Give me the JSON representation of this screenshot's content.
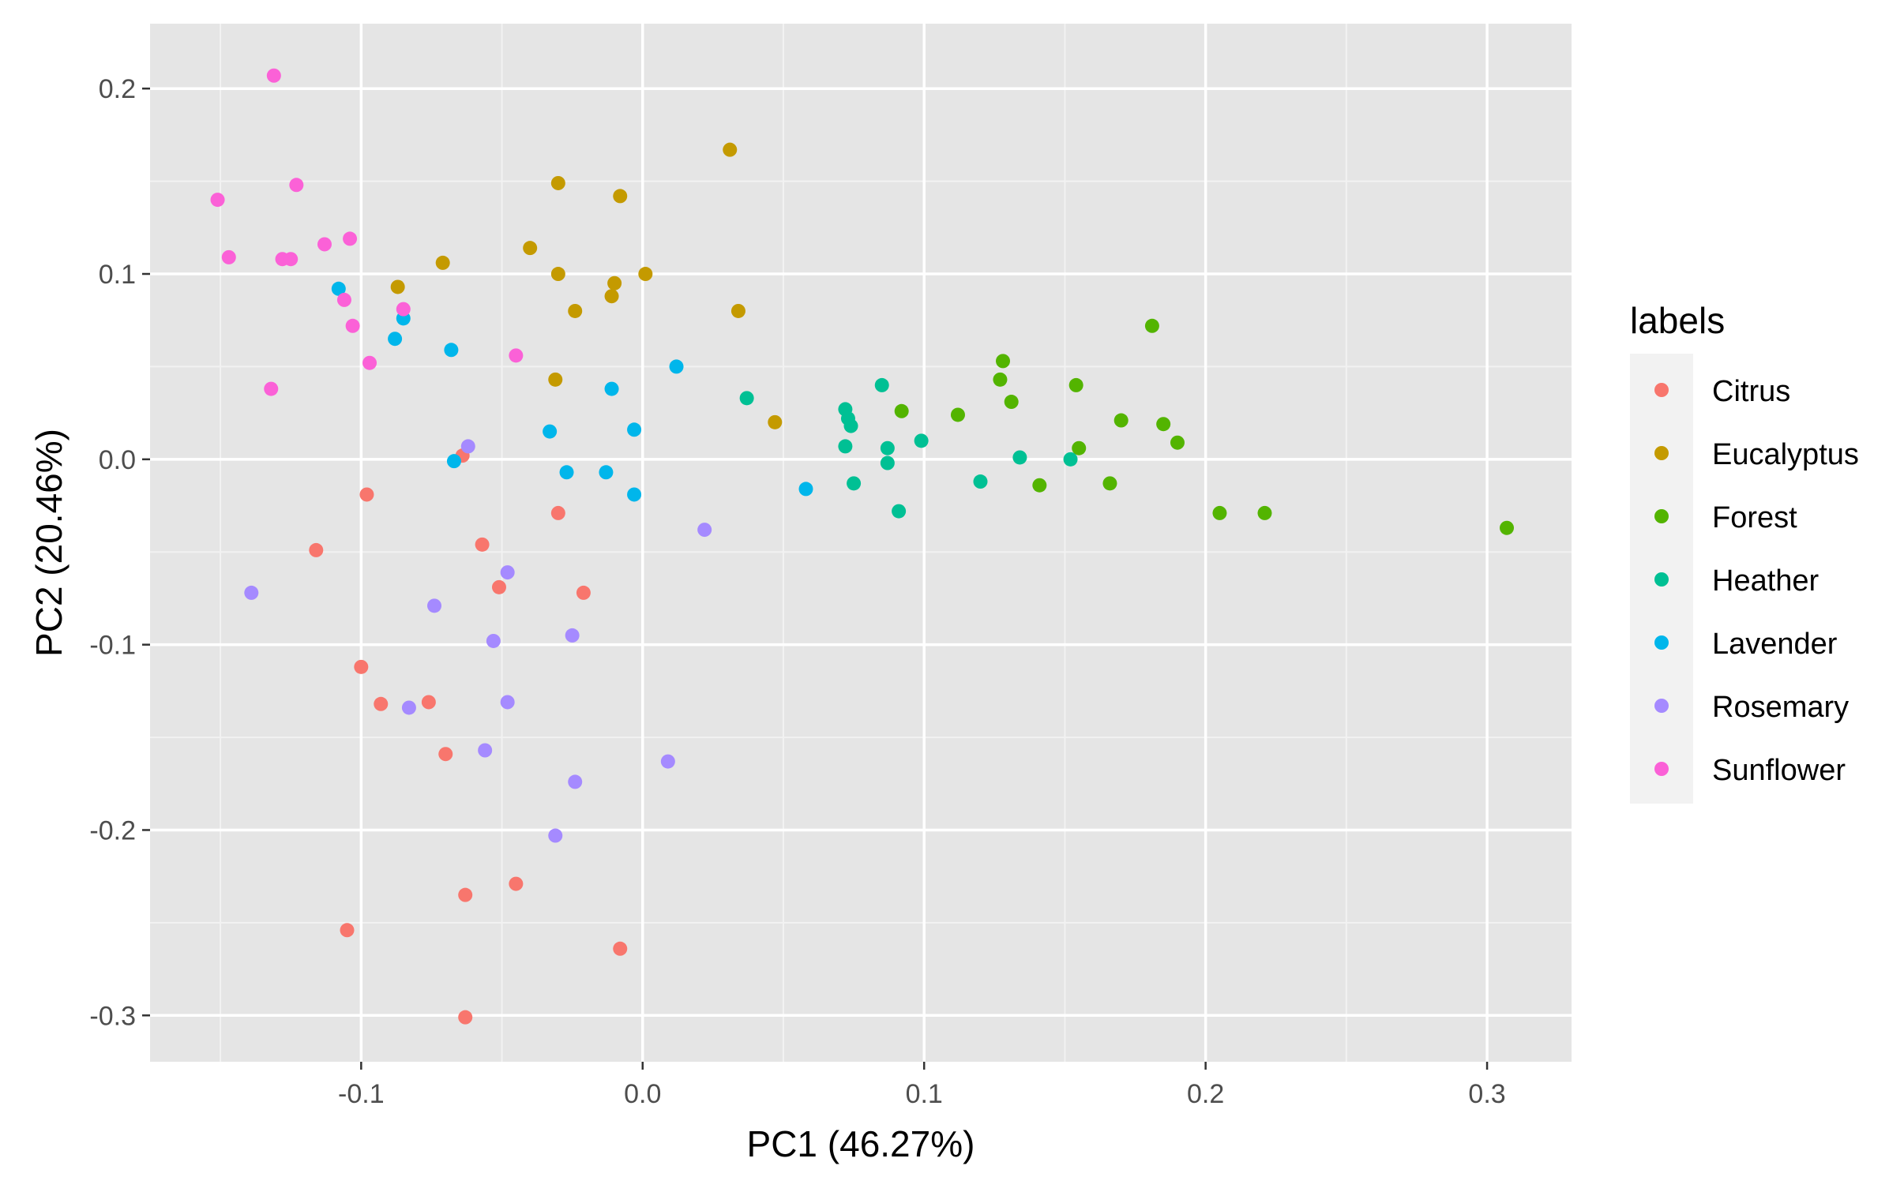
{
  "chart_data": {
    "type": "scatter",
    "xlabel": "PC1 (46.27%)",
    "ylabel": "PC2 (20.46%)",
    "xlim": [
      -0.175,
      0.33
    ],
    "ylim": [
      -0.325,
      0.235
    ],
    "x_ticks": [
      -0.1,
      0.0,
      0.1,
      0.2,
      0.3
    ],
    "y_ticks": [
      -0.3,
      -0.2,
      -0.1,
      0.0,
      0.1,
      0.2
    ],
    "x_tick_labels": [
      "-0.1",
      "0.0",
      "0.1",
      "0.2",
      "0.3"
    ],
    "y_tick_labels": [
      "-0.3",
      "-0.2",
      "-0.1",
      "0.0",
      "0.1",
      "0.2"
    ],
    "grid": true,
    "legend": {
      "title": "labels",
      "position": "right"
    },
    "series": [
      {
        "name": "Citrus",
        "color": "#F8766D",
        "points": [
          [
            -0.064,
            0.002
          ],
          [
            -0.098,
            -0.019
          ],
          [
            -0.116,
            -0.049
          ],
          [
            -0.03,
            -0.029
          ],
          [
            -0.057,
            -0.046
          ],
          [
            -0.051,
            -0.069
          ],
          [
            -0.021,
            -0.072
          ],
          [
            -0.1,
            -0.112
          ],
          [
            -0.093,
            -0.132
          ],
          [
            -0.076,
            -0.131
          ],
          [
            -0.07,
            -0.159
          ],
          [
            -0.063,
            -0.235
          ],
          [
            -0.045,
            -0.229
          ],
          [
            -0.105,
            -0.254
          ],
          [
            -0.008,
            -0.264
          ],
          [
            -0.063,
            -0.301
          ]
        ]
      },
      {
        "name": "Eucalyptus",
        "color": "#C49A00",
        "points": [
          [
            0.031,
            0.167
          ],
          [
            -0.03,
            0.149
          ],
          [
            -0.008,
            0.142
          ],
          [
            -0.04,
            0.114
          ],
          [
            -0.071,
            0.106
          ],
          [
            -0.03,
            0.1
          ],
          [
            0.001,
            0.1
          ],
          [
            -0.01,
            0.095
          ],
          [
            -0.087,
            0.093
          ],
          [
            -0.011,
            0.088
          ],
          [
            -0.024,
            0.08
          ],
          [
            0.034,
            0.08
          ],
          [
            -0.031,
            0.043
          ],
          [
            0.047,
            0.02
          ]
        ]
      },
      {
        "name": "Forest",
        "color": "#53B400",
        "points": [
          [
            0.181,
            0.072
          ],
          [
            0.128,
            0.053
          ],
          [
            0.127,
            0.043
          ],
          [
            0.154,
            0.04
          ],
          [
            0.131,
            0.031
          ],
          [
            0.092,
            0.026
          ],
          [
            0.112,
            0.024
          ],
          [
            0.17,
            0.021
          ],
          [
            0.185,
            0.019
          ],
          [
            0.19,
            0.009
          ],
          [
            0.155,
            0.006
          ],
          [
            0.141,
            -0.014
          ],
          [
            0.166,
            -0.013
          ],
          [
            0.205,
            -0.029
          ],
          [
            0.221,
            -0.029
          ],
          [
            0.307,
            -0.037
          ]
        ]
      },
      {
        "name": "Heather",
        "color": "#00C094",
        "points": [
          [
            0.085,
            0.04
          ],
          [
            0.037,
            0.033
          ],
          [
            0.072,
            0.027
          ],
          [
            0.074,
            0.018
          ],
          [
            0.072,
            0.007
          ],
          [
            0.099,
            0.01
          ],
          [
            0.087,
            0.006
          ],
          [
            0.087,
            -0.002
          ],
          [
            0.134,
            0.001
          ],
          [
            0.152,
            0.0
          ],
          [
            0.075,
            -0.013
          ],
          [
            0.12,
            -0.012
          ],
          [
            0.091,
            -0.028
          ],
          [
            0.073,
            0.022
          ]
        ]
      },
      {
        "name": "Lavender",
        "color": "#00B6EB",
        "points": [
          [
            -0.108,
            0.092
          ],
          [
            -0.085,
            0.076
          ],
          [
            -0.088,
            0.065
          ],
          [
            -0.068,
            0.059
          ],
          [
            0.012,
            0.05
          ],
          [
            -0.011,
            0.038
          ],
          [
            -0.003,
            0.016
          ],
          [
            -0.033,
            0.015
          ],
          [
            -0.067,
            -0.001
          ],
          [
            -0.027,
            -0.007
          ],
          [
            -0.013,
            -0.007
          ],
          [
            -0.003,
            -0.019
          ],
          [
            0.058,
            -0.016
          ]
        ]
      },
      {
        "name": "Rosemary",
        "color": "#A58AFF",
        "points": [
          [
            -0.062,
            0.007
          ],
          [
            0.022,
            -0.038
          ],
          [
            -0.048,
            -0.061
          ],
          [
            -0.139,
            -0.072
          ],
          [
            -0.074,
            -0.079
          ],
          [
            -0.025,
            -0.095
          ],
          [
            -0.053,
            -0.098
          ],
          [
            -0.048,
            -0.131
          ],
          [
            -0.083,
            -0.134
          ],
          [
            -0.056,
            -0.157
          ],
          [
            0.009,
            -0.163
          ],
          [
            -0.024,
            -0.174
          ],
          [
            -0.031,
            -0.203
          ]
        ]
      },
      {
        "name": "Sunflower",
        "color": "#FB61D7",
        "points": [
          [
            -0.131,
            0.207
          ],
          [
            -0.123,
            0.148
          ],
          [
            -0.151,
            0.14
          ],
          [
            -0.104,
            0.119
          ],
          [
            -0.113,
            0.116
          ],
          [
            -0.147,
            0.109
          ],
          [
            -0.128,
            0.108
          ],
          [
            -0.125,
            0.108
          ],
          [
            -0.106,
            0.086
          ],
          [
            -0.085,
            0.081
          ],
          [
            -0.103,
            0.072
          ],
          [
            -0.045,
            0.056
          ],
          [
            -0.097,
            0.052
          ],
          [
            -0.132,
            0.038
          ]
        ]
      }
    ]
  }
}
